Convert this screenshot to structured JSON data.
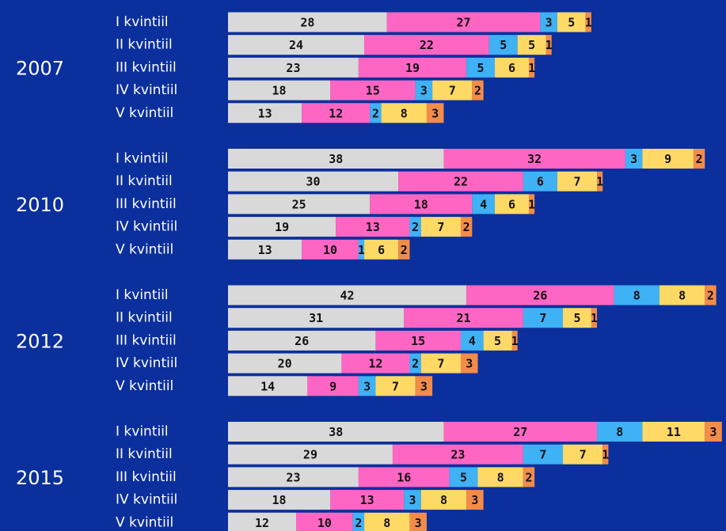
{
  "chart_data": [
    {
      "type": "bar",
      "title": "2007",
      "categories": [
        "I kvintiil",
        "II kvintiil",
        "III kvintiil",
        "IV kvintiil",
        "V kvintiil"
      ],
      "series": [
        {
          "color": "#d9d9d9",
          "values": [
            28,
            24,
            23,
            18,
            13
          ]
        },
        {
          "color": "#ff66c4",
          "values": [
            27,
            22,
            19,
            15,
            12
          ]
        },
        {
          "color": "#3fb1f5",
          "values": [
            3,
            5,
            5,
            3,
            2
          ]
        },
        {
          "color": "#ffd966",
          "values": [
            5,
            5,
            6,
            7,
            8
          ]
        },
        {
          "color": "#f28c4a",
          "values": [
            1,
            1,
            1,
            2,
            3
          ]
        }
      ]
    },
    {
      "type": "bar",
      "title": "2010",
      "categories": [
        "I kvintiil",
        "II kvintiil",
        "III kvintiil",
        "IV kvintiil",
        "V kvintiil"
      ],
      "series": [
        {
          "color": "#d9d9d9",
          "values": [
            38,
            30,
            25,
            19,
            13
          ]
        },
        {
          "color": "#ff66c4",
          "values": [
            32,
            22,
            18,
            13,
            10
          ]
        },
        {
          "color": "#3fb1f5",
          "values": [
            3,
            6,
            4,
            2,
            1
          ]
        },
        {
          "color": "#ffd966",
          "values": [
            9,
            7,
            6,
            7,
            6
          ]
        },
        {
          "color": "#f28c4a",
          "values": [
            2,
            1,
            1,
            2,
            2
          ]
        }
      ]
    },
    {
      "type": "bar",
      "title": "2012",
      "categories": [
        "I kvintiil",
        "II kvintiil",
        "III kvintiil",
        "IV kvintiil",
        "V kvintiil"
      ],
      "series": [
        {
          "color": "#d9d9d9",
          "values": [
            42,
            31,
            26,
            20,
            14
          ]
        },
        {
          "color": "#ff66c4",
          "values": [
            26,
            21,
            15,
            12,
            9
          ]
        },
        {
          "color": "#3fb1f5",
          "values": [
            8,
            7,
            4,
            2,
            3
          ]
        },
        {
          "color": "#ffd966",
          "values": [
            8,
            5,
            5,
            7,
            7
          ]
        },
        {
          "color": "#f28c4a",
          "values": [
            2,
            1,
            1,
            3,
            3
          ]
        }
      ]
    },
    {
      "type": "bar",
      "title": "2015",
      "categories": [
        "I kvintiil",
        "II kvintiil",
        "III kvintiil",
        "IV kvintiil",
        "V kvintiil"
      ],
      "series": [
        {
          "color": "#d9d9d9",
          "values": [
            38,
            29,
            23,
            18,
            12
          ]
        },
        {
          "color": "#ff66c4",
          "values": [
            27,
            23,
            16,
            13,
            10
          ]
        },
        {
          "color": "#3fb1f5",
          "values": [
            8,
            7,
            5,
            3,
            2
          ]
        },
        {
          "color": "#ffd966",
          "values": [
            11,
            7,
            8,
            8,
            8
          ]
        },
        {
          "color": "#f28c4a",
          "values": [
            3,
            1,
            2,
            3,
            3
          ]
        }
      ]
    }
  ]
}
